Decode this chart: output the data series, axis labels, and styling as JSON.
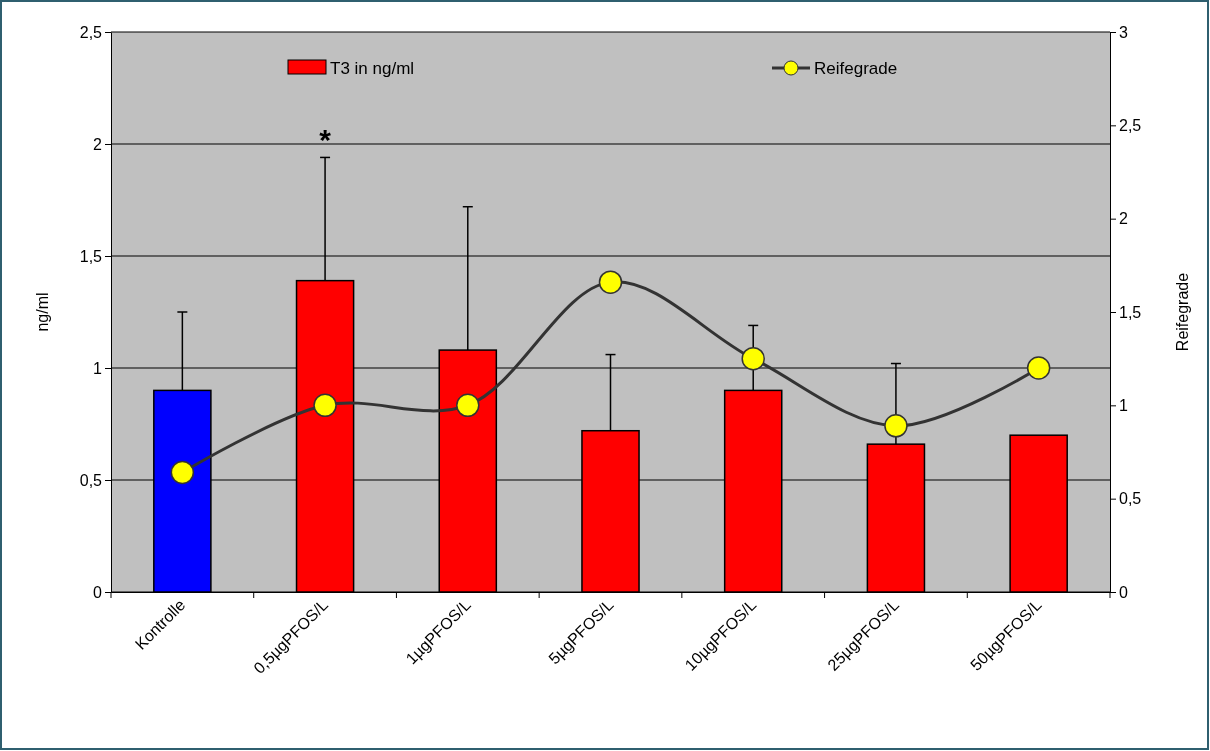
{
  "chart_data": {
    "type": "bar",
    "categories": [
      "Kontrolle",
      "0,5µgPFOS/L",
      "1µgPFOS/L",
      "5µgPFOS/L",
      "10µgPFOS/L",
      "25µgPFOS/L",
      "50µgPFOS/L"
    ],
    "series": [
      {
        "name": "T3 in ng/ml",
        "colors": [
          "#0000ff",
          "#ff0000",
          "#ff0000",
          "#ff0000",
          "#ff0000",
          "#ff0000",
          "#ff0000"
        ],
        "values": [
          0.9,
          1.39,
          1.08,
          0.72,
          0.9,
          0.66,
          0.7
        ],
        "errors": [
          [
            0.9,
            1.25
          ],
          [
            1.39,
            1.94
          ],
          [
            1.08,
            1.72
          ],
          [
            0.72,
            1.06
          ],
          [
            0.9,
            1.19
          ],
          [
            0.66,
            1.02
          ],
          null
        ]
      },
      {
        "name": "Reifegrade",
        "type": "line",
        "axis": "y2",
        "color": "#333333",
        "marker": "circle",
        "values": [
          0.64,
          1.0,
          1.0,
          1.66,
          1.25,
          0.89,
          1.2
        ]
      }
    ],
    "ylabel": "ng/ml",
    "y2label": "Reifegrade",
    "ylim": [
      0,
      2.5
    ],
    "yticks": [
      0,
      {
        "value": 0.5,
        "label": "0,5"
      },
      1,
      {
        "value": 1.5,
        "label": "1,5"
      },
      2,
      {
        "value": 2.5,
        "label": "2,5"
      }
    ],
    "y2lim": [
      0,
      3
    ],
    "y2ticks": [
      0,
      {
        "value": 0.5,
        "label": "0,5"
      },
      1,
      {
        "value": 1.5,
        "label": "1,5"
      },
      2,
      {
        "value": 2.5,
        "label": "2,5"
      },
      3
    ],
    "annotations": [
      "*"
    ],
    "grid": "y",
    "legend": "top"
  }
}
